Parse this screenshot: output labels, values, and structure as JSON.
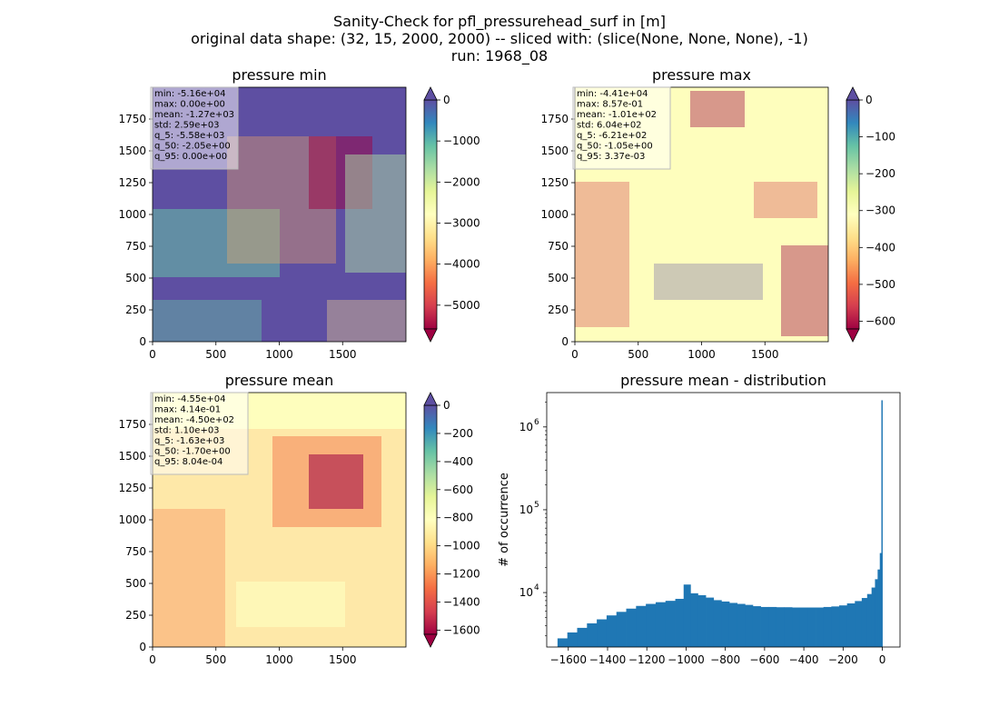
{
  "figure": {
    "title_lines": [
      "Sanity-Check for pfl_pressurehead_surf in [m]",
      "original data shape: (32, 15, 2000, 2000) -- sliced with: (slice(None, None, None), -1)",
      "run: 1968_08"
    ]
  },
  "chart_data": [
    {
      "type": "heatmap",
      "title": "pressure min",
      "xticks": [
        0,
        500,
        1000,
        1500
      ],
      "yticks": [
        0,
        250,
        500,
        750,
        1000,
        1250,
        1500,
        1750
      ],
      "xlim": [
        0,
        2000
      ],
      "ylim": [
        0,
        2000
      ],
      "colorbar": {
        "colormap": "Spectral",
        "vmin": -5580,
        "vmax": 0,
        "ticks": [
          0,
          -1000,
          -2000,
          -3000,
          -4000,
          -5000
        ],
        "extend": "both",
        "top_extend_color": "#5e4fa2",
        "bottom_extend_color": "#9e0142"
      },
      "stats": [
        "min: -5.16e+04",
        "max: 0.00e+00",
        "mean: -1.27e+03",
        "std: 2.59e+03",
        "q_5: -5.58e+03",
        "q_50: -2.05e+00",
        "q_95: 0.00e+00"
      ]
    },
    {
      "type": "heatmap",
      "title": "pressure max",
      "xticks": [
        0,
        500,
        1000,
        1500
      ],
      "yticks": [
        0,
        250,
        500,
        750,
        1000,
        1250,
        1500,
        1750
      ],
      "xlim": [
        0,
        2000
      ],
      "ylim": [
        0,
        2000
      ],
      "colorbar": {
        "colormap": "Spectral",
        "vmin": -621,
        "vmax": 0,
        "ticks": [
          0,
          -100,
          -200,
          -300,
          -400,
          -500,
          -600
        ],
        "extend": "both",
        "top_extend_color": "#5e4fa2",
        "bottom_extend_color": "#9e0142"
      },
      "stats": [
        "min: -4.41e+04",
        "max: 8.57e-01",
        "mean: -1.01e+02",
        "std: 6.04e+02",
        "q_5: -6.21e+02",
        "q_50: -1.05e+00",
        "q_95: 3.37e-03"
      ]
    },
    {
      "type": "heatmap",
      "title": "pressure mean",
      "xticks": [
        0,
        500,
        1000,
        1500
      ],
      "yticks": [
        0,
        250,
        500,
        750,
        1000,
        1250,
        1500,
        1750
      ],
      "xlim": [
        0,
        2000
      ],
      "ylim": [
        0,
        2000
      ],
      "colorbar": {
        "colormap": "Spectral",
        "vmin": -1630,
        "vmax": 0,
        "ticks": [
          0,
          -200,
          -400,
          -600,
          -800,
          -1000,
          -1200,
          -1400,
          -1600
        ],
        "extend": "both",
        "top_extend_color": "#5e4fa2",
        "bottom_extend_color": "#9e0142"
      },
      "stats": [
        "min: -4.55e+04",
        "max: 4.14e-01",
        "mean: -4.50e+02",
        "std: 1.10e+03",
        "q_5: -1.63e+03",
        "q_50: -1.70e+00",
        "q_95: 8.04e-04"
      ]
    },
    {
      "type": "histogram",
      "title": "pressure mean - distribution",
      "xlabel": "",
      "ylabel": "# of occurrence",
      "yscale": "log",
      "xlim": [
        -1710,
        90
      ],
      "ylim": [
        2200,
        2600000
      ],
      "xticks": [
        -1600,
        -1400,
        -1200,
        -1000,
        -800,
        -600,
        -400,
        -200,
        0
      ],
      "yticks": [
        10000,
        100000,
        1000000
      ],
      "ytick_labels": [
        "10",
        "10",
        "10"
      ],
      "ytick_exponents": [
        "4",
        "5",
        "6"
      ],
      "bar_color": "#1f77b4",
      "bins": [
        {
          "x": -1630,
          "count": 2800
        },
        {
          "x": -1580,
          "count": 3300
        },
        {
          "x": -1530,
          "count": 3750
        },
        {
          "x": -1480,
          "count": 4250
        },
        {
          "x": -1430,
          "count": 4750
        },
        {
          "x": -1380,
          "count": 5300
        },
        {
          "x": -1330,
          "count": 5850
        },
        {
          "x": -1280,
          "count": 6400
        },
        {
          "x": -1230,
          "count": 6900
        },
        {
          "x": -1180,
          "count": 7300
        },
        {
          "x": -1130,
          "count": 7650
        },
        {
          "x": -1080,
          "count": 7950
        },
        {
          "x": -1030,
          "count": 8400
        },
        {
          "x": -995,
          "count": 12500
        },
        {
          "x": -960,
          "count": 9800
        },
        {
          "x": -920,
          "count": 9300
        },
        {
          "x": -880,
          "count": 8700
        },
        {
          "x": -840,
          "count": 8100
        },
        {
          "x": -800,
          "count": 7800
        },
        {
          "x": -760,
          "count": 7500
        },
        {
          "x": -720,
          "count": 7300
        },
        {
          "x": -680,
          "count": 7100
        },
        {
          "x": -640,
          "count": 6850
        },
        {
          "x": -600,
          "count": 6700
        },
        {
          "x": -560,
          "count": 6700
        },
        {
          "x": -520,
          "count": 6650
        },
        {
          "x": -480,
          "count": 6650
        },
        {
          "x": -440,
          "count": 6600
        },
        {
          "x": -400,
          "count": 6600
        },
        {
          "x": -360,
          "count": 6600
        },
        {
          "x": -320,
          "count": 6600
        },
        {
          "x": -280,
          "count": 6700
        },
        {
          "x": -240,
          "count": 6800
        },
        {
          "x": -200,
          "count": 7000
        },
        {
          "x": -160,
          "count": 7400
        },
        {
          "x": -120,
          "count": 7900
        },
        {
          "x": -90,
          "count": 8600
        },
        {
          "x": -65,
          "count": 9600
        },
        {
          "x": -45,
          "count": 11500
        },
        {
          "x": -30,
          "count": 14500
        },
        {
          "x": -18,
          "count": 19000
        },
        {
          "x": -8,
          "count": 30000
        },
        {
          "x": -2,
          "count": 2100000
        }
      ]
    }
  ]
}
